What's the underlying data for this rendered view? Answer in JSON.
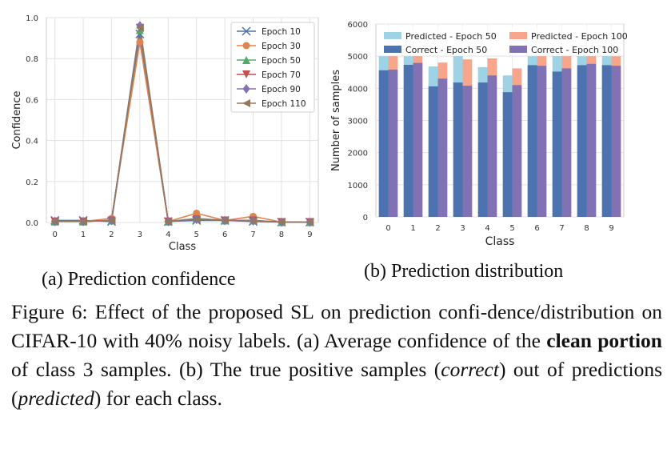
{
  "chart_data": [
    {
      "type": "line",
      "title": "",
      "xlabel": "Class",
      "ylabel": "Confidence",
      "x": [
        0,
        1,
        2,
        3,
        4,
        5,
        6,
        7,
        8,
        9
      ],
      "xlim": [
        -0.3,
        9.3
      ],
      "ylim": [
        0,
        1.0
      ],
      "yticks": [
        "0.0",
        "0.2",
        "0.4",
        "0.6",
        "0.8",
        "1.0"
      ],
      "grid": true,
      "legend_position": "top-right",
      "series": [
        {
          "name": "Epoch 10",
          "color": "#4c72b0",
          "marker": "x",
          "values": [
            0.01,
            0.01,
            0.005,
            0.92,
            0.005,
            0.01,
            0.01,
            0.005,
            0.002,
            0.002
          ]
        },
        {
          "name": "Epoch 30",
          "color": "#dd8452",
          "marker": "circle",
          "values": [
            0.005,
            0.005,
            0.02,
            0.88,
            0.005,
            0.045,
            0.01,
            0.03,
            0.002,
            0.002
          ]
        },
        {
          "name": "Epoch 50",
          "color": "#55a868",
          "marker": "triangle-up",
          "values": [
            0.005,
            0.005,
            0.01,
            0.94,
            0.005,
            0.02,
            0.01,
            0.01,
            0.002,
            0.002
          ]
        },
        {
          "name": "Epoch 70",
          "color": "#c44e52",
          "marker": "triangle-down",
          "values": [
            0.005,
            0.005,
            0.01,
            0.95,
            0.005,
            0.015,
            0.01,
            0.01,
            0.002,
            0.002
          ]
        },
        {
          "name": "Epoch 90",
          "color": "#8172b3",
          "marker": "diamond",
          "values": [
            0.005,
            0.005,
            0.01,
            0.96,
            0.005,
            0.015,
            0.01,
            0.008,
            0.002,
            0.002
          ]
        },
        {
          "name": "Epoch 110",
          "color": "#937860",
          "marker": "triangle-left",
          "values": [
            0.005,
            0.005,
            0.01,
            0.95,
            0.005,
            0.015,
            0.01,
            0.008,
            0.002,
            0.002
          ]
        }
      ]
    },
    {
      "type": "bar",
      "title": "",
      "xlabel": "Class",
      "ylabel": "Number of samples",
      "categories": [
        "0",
        "1",
        "2",
        "3",
        "4",
        "5",
        "6",
        "7",
        "8",
        "9"
      ],
      "ylim": [
        0,
        6000
      ],
      "yticks": [
        "0",
        "1000",
        "2000",
        "3000",
        "4000",
        "5000",
        "6000"
      ],
      "grid": true,
      "legend_position": "top",
      "series": [
        {
          "name": "Predicted - Epoch 50",
          "color": "#9ed3e6",
          "values": [
            5000,
            5000,
            4680,
            5000,
            4660,
            4400,
            5000,
            5000,
            5000,
            5000
          ]
        },
        {
          "name": "Predicted - Epoch 100",
          "color": "#f7a68c",
          "values": [
            5000,
            5000,
            4800,
            4900,
            4930,
            4620,
            5000,
            5000,
            5000,
            5000
          ]
        },
        {
          "name": "Correct - Epoch 50",
          "color": "#4c72b0",
          "values": [
            4560,
            4730,
            4060,
            4180,
            4180,
            3880,
            4720,
            4520,
            4720,
            4720
          ]
        },
        {
          "name": "Correct - Epoch 100",
          "color": "#8172b3",
          "values": [
            4580,
            4790,
            4300,
            4080,
            4400,
            4100,
            4700,
            4620,
            4760,
            4700
          ]
        }
      ]
    }
  ],
  "subcaptions": {
    "a": "(a) Prediction confidence",
    "b": "(b) Prediction distribution"
  },
  "caption": {
    "p1": "Figure 6:  Effect of the proposed SL on prediction confi-dence/distribution on CIFAR-10 with 40% noisy labels. (a) Average confidence of the ",
    "bold": "clean portion",
    "p2": " of class 3 samples. (b) The true positive samples (",
    "em1": "correct",
    "p3": ") out of predictions (",
    "em2": "predicted",
    "p4": ") for each class."
  }
}
